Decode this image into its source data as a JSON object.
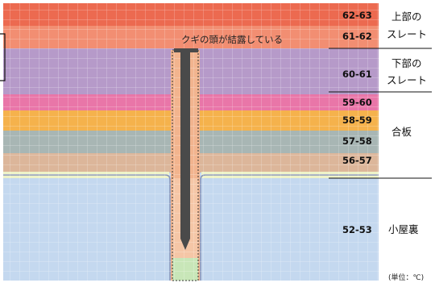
{
  "annotation": "クギの頭が結露している",
  "unit": "(単位：℃)",
  "bands": [
    {
      "range": "62-63",
      "color": "#ec6a50"
    },
    {
      "range": "61-62",
      "color": "#f28e72"
    },
    {
      "range": "60-61",
      "color": "#b69ac9"
    },
    {
      "range": "59-60",
      "color": "#e976a8"
    },
    {
      "range": "58-59",
      "color": "#f5b24c"
    },
    {
      "range": "57-58",
      "color": "#a8b6b4"
    },
    {
      "range": "56-57",
      "color": "#dcb69a"
    },
    {
      "range": "52-53",
      "color": "#c4d8ef"
    }
  ],
  "sections": [
    {
      "name": "上部の",
      "name2": "スレート"
    },
    {
      "name": "下部の",
      "name2": "スレート"
    },
    {
      "name": "合板"
    },
    {
      "name": "小屋裏"
    }
  ],
  "colors": {
    "nail": "#4a4a4a",
    "gap_strip": "#eef3c8",
    "air_bottom": "#c8e6b8",
    "grid": "#ffffff"
  }
}
